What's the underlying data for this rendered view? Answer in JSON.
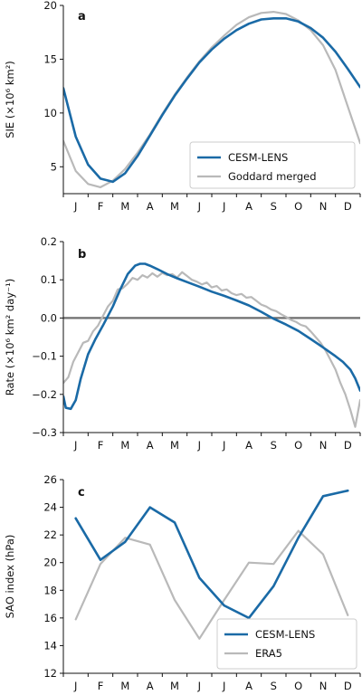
{
  "colors": {
    "primary": "#1a6aa6",
    "secondary": "#b9b9b9",
    "zero_line": "#6f6f6f",
    "axis": "#111111"
  },
  "chart_data": [
    {
      "panel": "a",
      "type": "line",
      "ylabel": "SIE (×10⁶ km²)",
      "ylim": [
        2.5,
        20
      ],
      "yticks": [
        5,
        10,
        15,
        20
      ],
      "xlim": [
        0,
        12
      ],
      "xtick_labels": [
        "J",
        "F",
        "M",
        "A",
        "M",
        "J",
        "J",
        "A",
        "S",
        "O",
        "N",
        "D"
      ],
      "legend": {
        "location": "lower-right",
        "entries": [
          "CESM-LENS",
          "Goddard merged"
        ]
      },
      "series": [
        {
          "name": "CESM-LENS",
          "color": "#1a6aa6",
          "x": [
            0,
            0.5,
            1,
            1.5,
            2,
            2.5,
            3,
            3.5,
            4,
            4.5,
            5,
            5.5,
            6,
            6.5,
            7,
            7.5,
            8,
            8.5,
            9,
            9.5,
            10,
            10.5,
            11,
            11.5,
            12
          ],
          "y": [
            12.3,
            7.8,
            5.2,
            3.9,
            3.6,
            4.4,
            6.0,
            7.9,
            9.8,
            11.6,
            13.2,
            14.7,
            15.9,
            16.9,
            17.7,
            18.3,
            18.7,
            18.8,
            18.8,
            18.5,
            17.9,
            17.0,
            15.7,
            14.1,
            12.4
          ]
        },
        {
          "name": "Goddard merged",
          "color": "#b9b9b9",
          "x": [
            0,
            0.5,
            1,
            1.5,
            2,
            2.5,
            3,
            3.5,
            4,
            4.5,
            5,
            5.5,
            6,
            6.5,
            7,
            7.5,
            8,
            8.5,
            9,
            9.5,
            10,
            10.5,
            11,
            11.5,
            12
          ],
          "y": [
            7.4,
            4.6,
            3.4,
            3.1,
            3.7,
            4.8,
            6.3,
            8.0,
            9.9,
            11.7,
            13.3,
            14.8,
            16.1,
            17.2,
            18.2,
            18.9,
            19.3,
            19.4,
            19.2,
            18.6,
            17.7,
            16.3,
            14.0,
            10.6,
            7.2
          ]
        }
      ]
    },
    {
      "panel": "b",
      "type": "line",
      "ylabel": "Rate (×10⁶ km² day⁻¹)",
      "ylim": [
        -0.3,
        0.2
      ],
      "yticks": [
        -0.3,
        -0.2,
        -0.1,
        0.0,
        0.1,
        0.2
      ],
      "ytick_labels": [
        "−0.3",
        "−0.2",
        "−0.1",
        "0.0",
        "0.1",
        "0.2"
      ],
      "zero_line": 0,
      "xlim": [
        0,
        12
      ],
      "xtick_labels": [
        "J",
        "F",
        "M",
        "A",
        "M",
        "J",
        "J",
        "A",
        "S",
        "O",
        "N",
        "D"
      ],
      "series": [
        {
          "name": "CESM-LENS",
          "color": "#1a6aa6",
          "x": [
            0,
            0.1,
            0.3,
            0.5,
            0.7,
            1.0,
            1.3,
            1.6,
            2.0,
            2.3,
            2.6,
            2.9,
            3.1,
            3.3,
            3.5,
            3.8,
            4.2,
            4.6,
            5.0,
            5.5,
            6.0,
            6.5,
            7.0,
            7.5,
            8.0,
            8.5,
            9.0,
            9.5,
            10.0,
            10.5,
            11.0,
            11.3,
            11.6,
            11.8,
            12.0
          ],
          "y": [
            -0.205,
            -0.235,
            -0.238,
            -0.215,
            -0.16,
            -0.095,
            -0.055,
            -0.02,
            0.03,
            0.075,
            0.115,
            0.137,
            0.142,
            0.142,
            0.137,
            0.128,
            0.115,
            0.104,
            0.094,
            0.082,
            0.069,
            0.058,
            0.046,
            0.033,
            0.016,
            -0.002,
            -0.017,
            -0.034,
            -0.055,
            -0.077,
            -0.1,
            -0.115,
            -0.135,
            -0.158,
            -0.19
          ]
        },
        {
          "name": "Goddard merged",
          "color": "#b9b9b9",
          "x": [
            0,
            0.2,
            0.4,
            0.6,
            0.8,
            1.0,
            1.2,
            1.4,
            1.6,
            1.8,
            2.0,
            2.2,
            2.4,
            2.6,
            2.8,
            3.0,
            3.2,
            3.4,
            3.6,
            3.8,
            4.0,
            4.2,
            4.4,
            4.6,
            4.8,
            5.0,
            5.2,
            5.4,
            5.6,
            5.8,
            6.0,
            6.2,
            6.4,
            6.6,
            6.8,
            7.0,
            7.2,
            7.4,
            7.6,
            7.8,
            8.0,
            8.2,
            8.4,
            8.6,
            8.8,
            9.0,
            9.2,
            9.4,
            9.6,
            9.8,
            10.0,
            10.2,
            10.4,
            10.6,
            10.8,
            11.0,
            11.2,
            11.4,
            11.6,
            11.8,
            12.0
          ],
          "y": [
            -0.17,
            -0.155,
            -0.115,
            -0.09,
            -0.065,
            -0.06,
            -0.035,
            -0.02,
            0.005,
            0.03,
            0.045,
            0.075,
            0.078,
            0.09,
            0.105,
            0.1,
            0.112,
            0.106,
            0.117,
            0.108,
            0.118,
            0.112,
            0.115,
            0.106,
            0.12,
            0.11,
            0.1,
            0.095,
            0.088,
            0.093,
            0.08,
            0.084,
            0.072,
            0.075,
            0.065,
            0.06,
            0.063,
            0.053,
            0.055,
            0.045,
            0.035,
            0.03,
            0.022,
            0.018,
            0.01,
            0.003,
            -0.005,
            -0.01,
            -0.018,
            -0.022,
            -0.035,
            -0.05,
            -0.065,
            -0.085,
            -0.11,
            -0.135,
            -0.17,
            -0.2,
            -0.24,
            -0.285,
            -0.215
          ]
        }
      ]
    },
    {
      "panel": "c",
      "type": "line",
      "ylabel": "SAO index (hPa)",
      "ylim": [
        12,
        26
      ],
      "yticks": [
        12,
        14,
        16,
        18,
        20,
        22,
        24,
        26
      ],
      "xlim": [
        0,
        12
      ],
      "xtick_labels": [
        "J",
        "F",
        "M",
        "A",
        "M",
        "J",
        "J",
        "A",
        "S",
        "O",
        "N",
        "D"
      ],
      "legend": {
        "location": "lower-right",
        "entries": [
          "CESM-LENS",
          "ERA5"
        ]
      },
      "series": [
        {
          "name": "CESM-LENS",
          "color": "#1a6aa6",
          "x": [
            0.5,
            1.5,
            2.5,
            3.5,
            4.5,
            5.5,
            6.5,
            7.5,
            8.5,
            9.5,
            10.5,
            11.5
          ],
          "y": [
            23.2,
            20.2,
            21.5,
            24.0,
            22.9,
            18.9,
            16.9,
            16.0,
            18.3,
            21.8,
            24.8,
            25.2
          ]
        },
        {
          "name": "ERA5",
          "color": "#b9b9b9",
          "x": [
            0.5,
            1.5,
            2.5,
            3.5,
            4.5,
            5.5,
            6.5,
            7.5,
            8.5,
            9.5,
            10.5,
            11.5
          ],
          "y": [
            15.9,
            19.9,
            21.8,
            21.3,
            17.3,
            14.5,
            17.3,
            20.0,
            19.9,
            22.3,
            20.6,
            16.2
          ]
        }
      ]
    }
  ]
}
